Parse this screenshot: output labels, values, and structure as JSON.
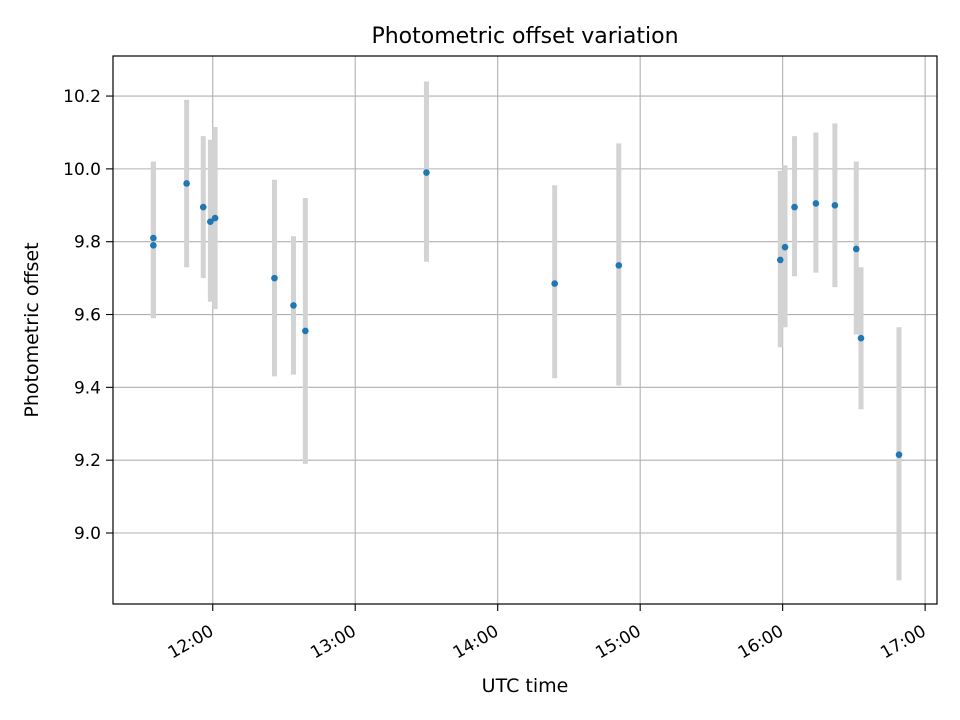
{
  "chart_data": {
    "type": "scatter",
    "title": "Photometric offset variation",
    "xlabel": "UTC time",
    "ylabel": "Photometric offset",
    "x_tick_labels": [
      "12:00",
      "13:00",
      "14:00",
      "15:00",
      "16:00",
      "17:00"
    ],
    "x_ticks": [
      "12:00",
      "13:00",
      "14:00",
      "15:00",
      "16:00",
      "17:00"
    ],
    "y_ticks": [
      9.0,
      9.2,
      9.4,
      9.6,
      9.8,
      10.0,
      10.2
    ],
    "y_tick_labels": [
      "9.0",
      "9.2",
      "9.4",
      "9.6",
      "9.8",
      "10.0",
      "10.2"
    ],
    "xlim": [
      "11:18",
      "17:05"
    ],
    "ylim": [
      8.805,
      10.31
    ],
    "grid": true,
    "marker_color": "#1f77b4",
    "errorbar_color": "#d3d3d3",
    "points": [
      {
        "x": "11:35",
        "y": 9.79,
        "ylow": 9.59,
        "yhigh": 10.02
      },
      {
        "x": "11:35",
        "y": 9.81,
        "ylow": 9.59,
        "yhigh": 10.02
      },
      {
        "x": "11:49",
        "y": 9.96,
        "ylow": 9.73,
        "yhigh": 10.19
      },
      {
        "x": "11:56",
        "y": 9.895,
        "ylow": 9.7,
        "yhigh": 10.09
      },
      {
        "x": "11:59",
        "y": 9.855,
        "ylow": 9.635,
        "yhigh": 10.08
      },
      {
        "x": "12:01",
        "y": 9.865,
        "ylow": 9.615,
        "yhigh": 10.115
      },
      {
        "x": "12:26",
        "y": 9.7,
        "ylow": 9.43,
        "yhigh": 9.97
      },
      {
        "x": "12:34",
        "y": 9.625,
        "ylow": 9.435,
        "yhigh": 9.815
      },
      {
        "x": "12:39",
        "y": 9.555,
        "ylow": 9.19,
        "yhigh": 9.92
      },
      {
        "x": "13:30",
        "y": 9.99,
        "ylow": 9.745,
        "yhigh": 10.24
      },
      {
        "x": "14:24",
        "y": 9.685,
        "ylow": 9.425,
        "yhigh": 9.955
      },
      {
        "x": "14:51",
        "y": 9.735,
        "ylow": 9.405,
        "yhigh": 10.07
      },
      {
        "x": "15:59",
        "y": 9.75,
        "ylow": 9.51,
        "yhigh": 9.995
      },
      {
        "x": "16:01",
        "y": 9.785,
        "ylow": 9.565,
        "yhigh": 10.01
      },
      {
        "x": "16:05",
        "y": 9.895,
        "ylow": 9.705,
        "yhigh": 10.09
      },
      {
        "x": "16:14",
        "y": 9.905,
        "ylow": 9.715,
        "yhigh": 10.1
      },
      {
        "x": "16:22",
        "y": 9.9,
        "ylow": 9.675,
        "yhigh": 10.125
      },
      {
        "x": "16:31",
        "y": 9.78,
        "ylow": 9.545,
        "yhigh": 10.02
      },
      {
        "x": "16:33",
        "y": 9.535,
        "ylow": 9.34,
        "yhigh": 9.73
      },
      {
        "x": "16:49",
        "y": 9.215,
        "ylow": 8.87,
        "yhigh": 9.565
      }
    ]
  }
}
